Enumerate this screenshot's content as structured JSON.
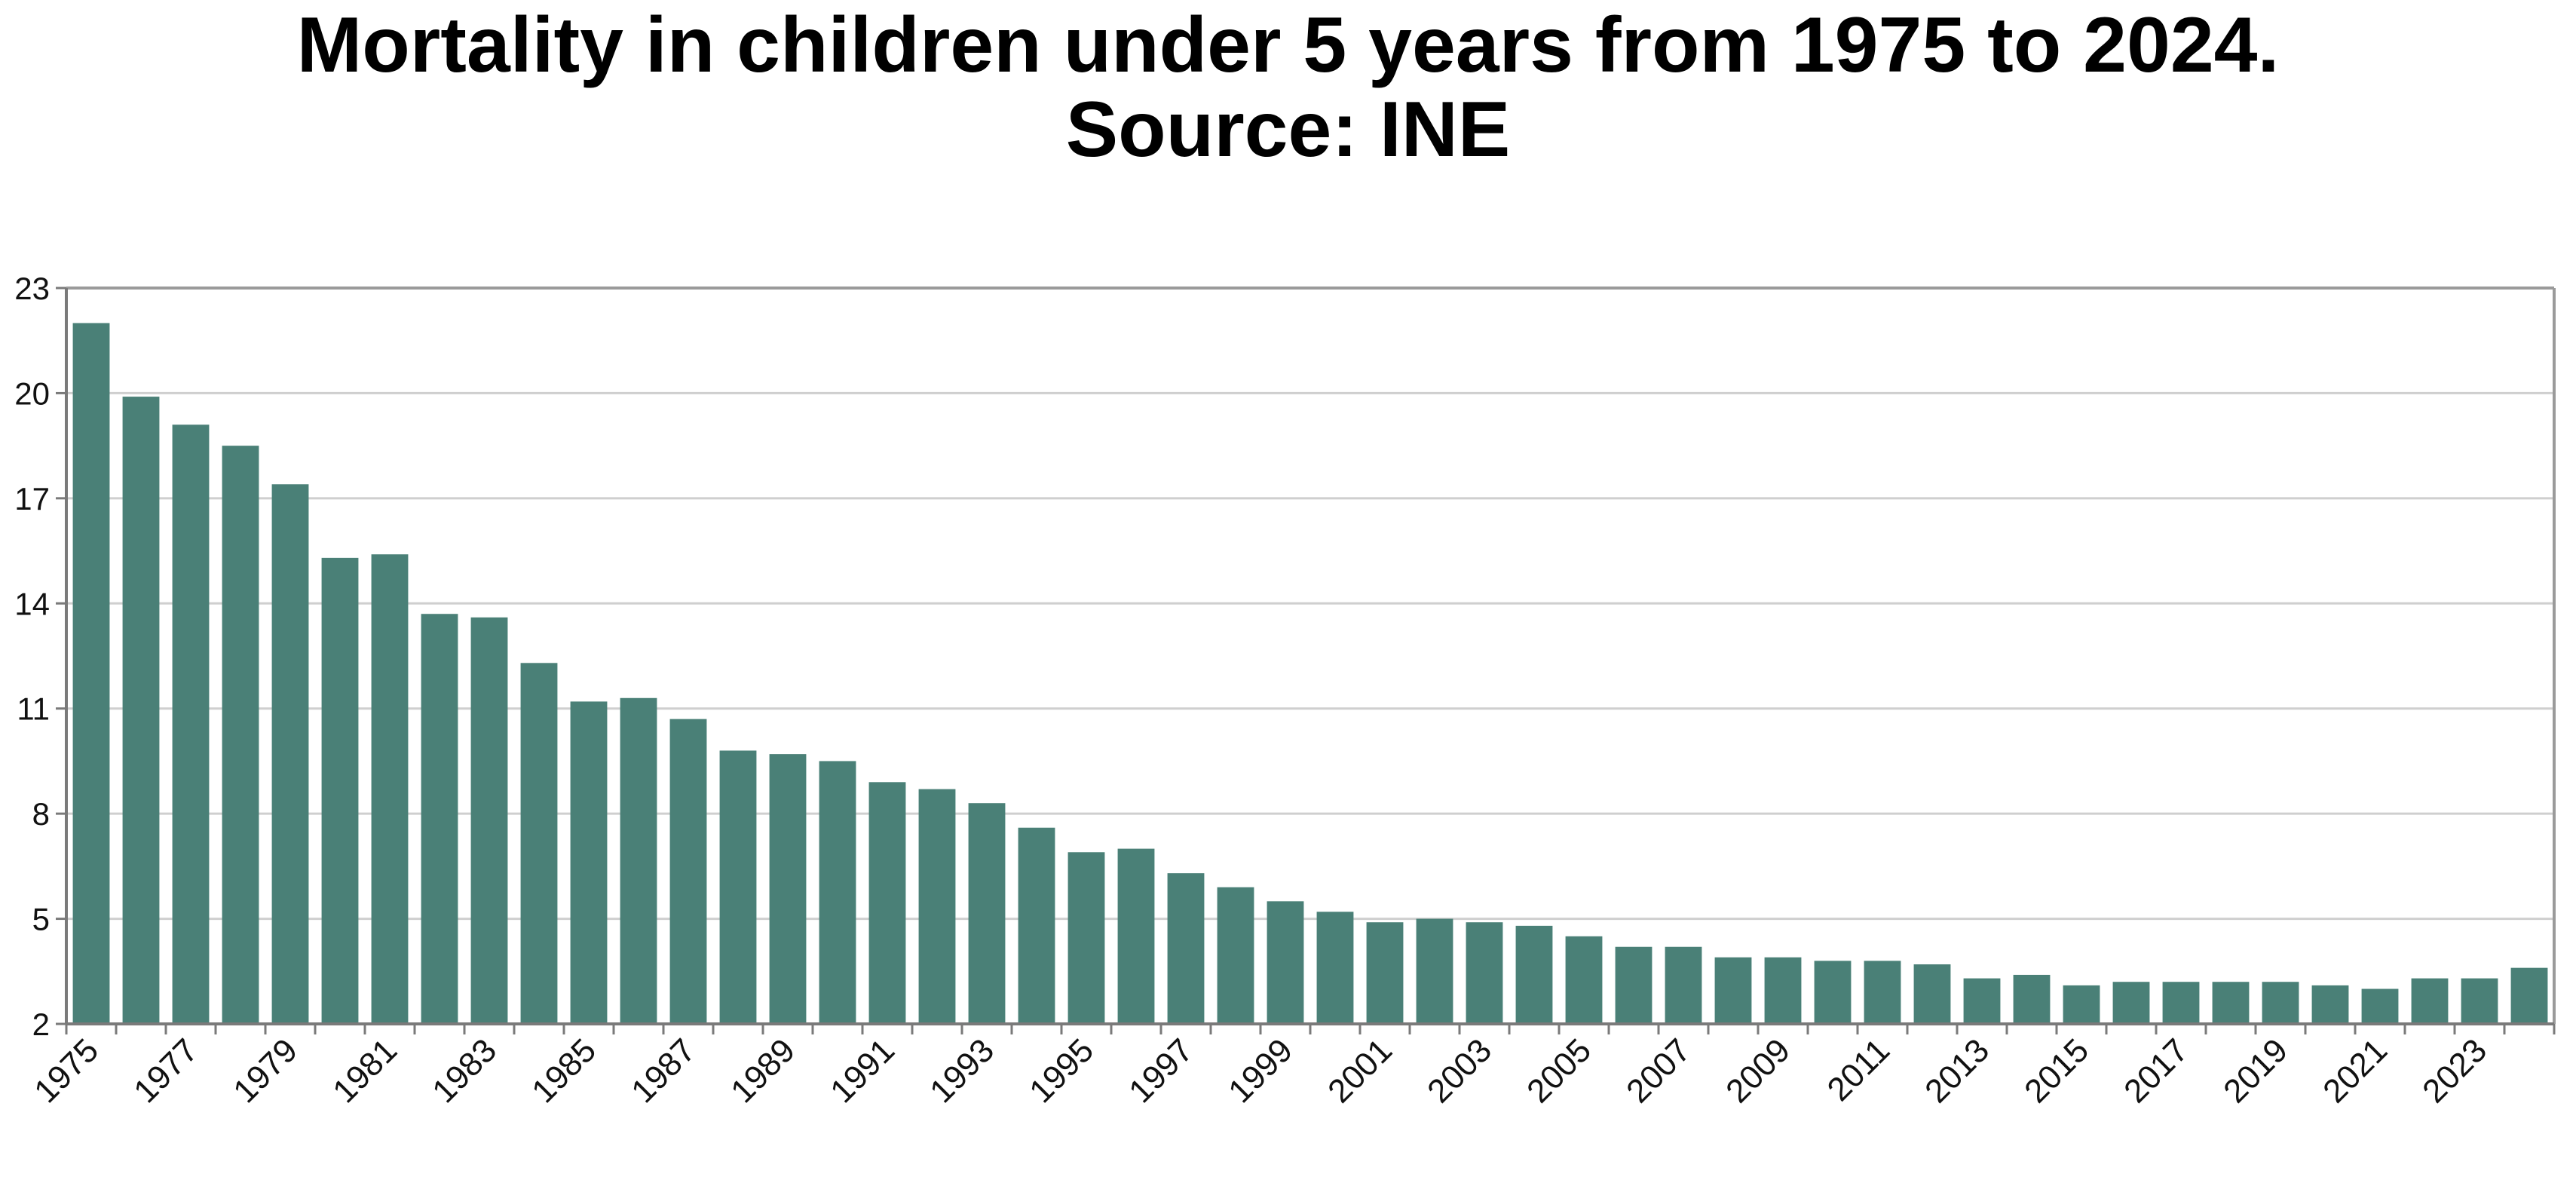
{
  "chart_data": {
    "type": "bar",
    "title": "Mortality in children under 5 years from 1975 to 2024.",
    "subtitle": "Source: INE",
    "xlabel": "",
    "ylabel": "",
    "ylim": [
      2,
      23
    ],
    "yticks": [
      2,
      5,
      8,
      11,
      14,
      17,
      20,
      23
    ],
    "grid": "horizontal",
    "legend": "none",
    "bar_color": "#4a8077",
    "categories": [
      "1975",
      "1976",
      "1977",
      "1978",
      "1979",
      "1980",
      "1981",
      "1982",
      "1983",
      "1984",
      "1985",
      "1986",
      "1987",
      "1988",
      "1989",
      "1990",
      "1991",
      "1992",
      "1993",
      "1994",
      "1995",
      "1996",
      "1997",
      "1998",
      "1999",
      "2000",
      "2001",
      "2002",
      "2003",
      "2004",
      "2005",
      "2006",
      "2007",
      "2008",
      "2009",
      "2010",
      "2011",
      "2012",
      "2013",
      "2014",
      "2015",
      "2016",
      "2017",
      "2018",
      "2019",
      "2020",
      "2021",
      "2022",
      "2023",
      "2024"
    ],
    "x_tick_labels": [
      "1975",
      "1977",
      "1979",
      "1981",
      "1983",
      "1985",
      "1987",
      "1989",
      "1991",
      "1993",
      "1995",
      "1997",
      "1999",
      "2001",
      "2003",
      "2005",
      "2007",
      "2009",
      "2011",
      "2013",
      "2015",
      "2017",
      "2019",
      "2021",
      "2023"
    ],
    "values": [
      22.0,
      19.9,
      19.1,
      18.5,
      17.4,
      15.3,
      15.4,
      13.7,
      13.6,
      12.3,
      11.2,
      11.3,
      10.7,
      9.8,
      9.7,
      9.5,
      8.9,
      8.7,
      8.3,
      7.6,
      6.9,
      7.0,
      6.3,
      5.9,
      5.5,
      5.2,
      4.9,
      5.0,
      4.9,
      4.8,
      4.5,
      4.2,
      4.2,
      3.9,
      3.9,
      3.8,
      3.8,
      3.7,
      3.3,
      3.4,
      3.1,
      3.2,
      3.2,
      3.2,
      3.2,
      3.1,
      3.0,
      3.3,
      3.3,
      3.6
    ]
  }
}
